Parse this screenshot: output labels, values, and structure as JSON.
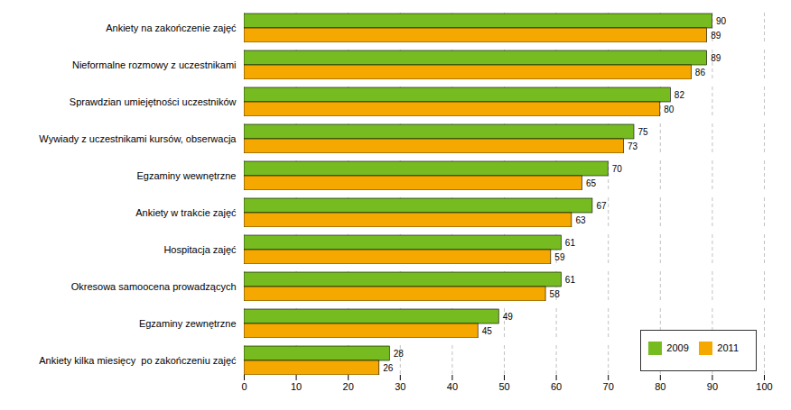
{
  "chart_data": {
    "type": "bar",
    "orientation": "horizontal",
    "categories": [
      "Ankiety kilka miesięcy  po zakończeniu zajęć",
      "Egzaminy zewnętrzne",
      "Okresowa samoocena prowadzących",
      "Hospitacja zajęć",
      "Ankiety w trakcie zajęć",
      "Egzaminy wewnętrzne",
      "Wywiady z uczestnikami kursów, obserwacja",
      "Sprawdzian umiejętności uczestników",
      "Nieformalne rozmowy z uczestnikami",
      "Ankiety na zakończenie zajęć"
    ],
    "series": [
      {
        "name": "2009",
        "color": "#76BC21",
        "values": [
          28,
          49,
          61,
          61,
          67,
          70,
          75,
          82,
          89,
          90
        ]
      },
      {
        "name": "2011",
        "color": "#F5A800",
        "values": [
          26,
          45,
          58,
          59,
          63,
          65,
          73,
          80,
          86,
          89
        ]
      }
    ],
    "xlim": [
      0,
      100
    ],
    "xticks": [
      0,
      10,
      20,
      30,
      40,
      50,
      60,
      70,
      80,
      90,
      100
    ],
    "grid": true,
    "legend": "lower right",
    "data_labels": true
  }
}
